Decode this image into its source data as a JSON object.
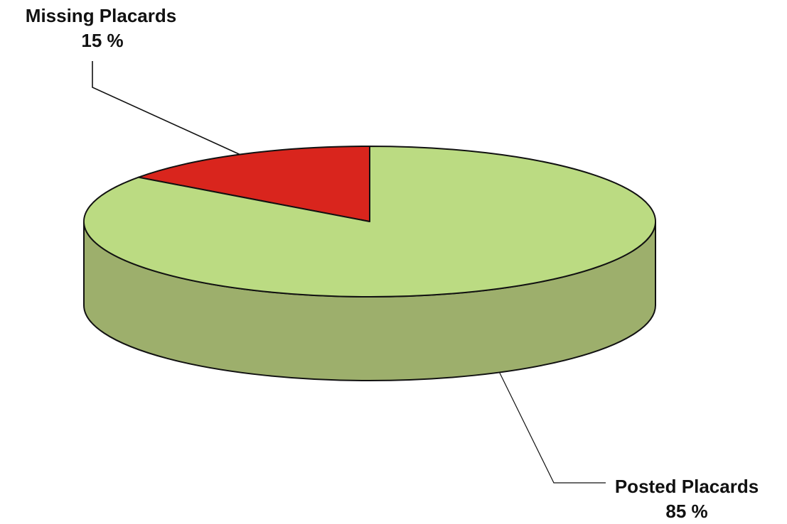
{
  "chart_data": {
    "type": "pie",
    "style": "3d",
    "categories": [
      "Missing Placards",
      "Posted Placards"
    ],
    "values": [
      15,
      85
    ],
    "value_labels": [
      "15 %",
      "85 %"
    ],
    "colors": {
      "Missing Placards": {
        "top": "#d9251d",
        "side": "#a81c16"
      },
      "Posted Placards": {
        "top": "#bbdb82",
        "side": "#9daf6c"
      }
    },
    "outline_color": "#111111",
    "legend": "none"
  }
}
